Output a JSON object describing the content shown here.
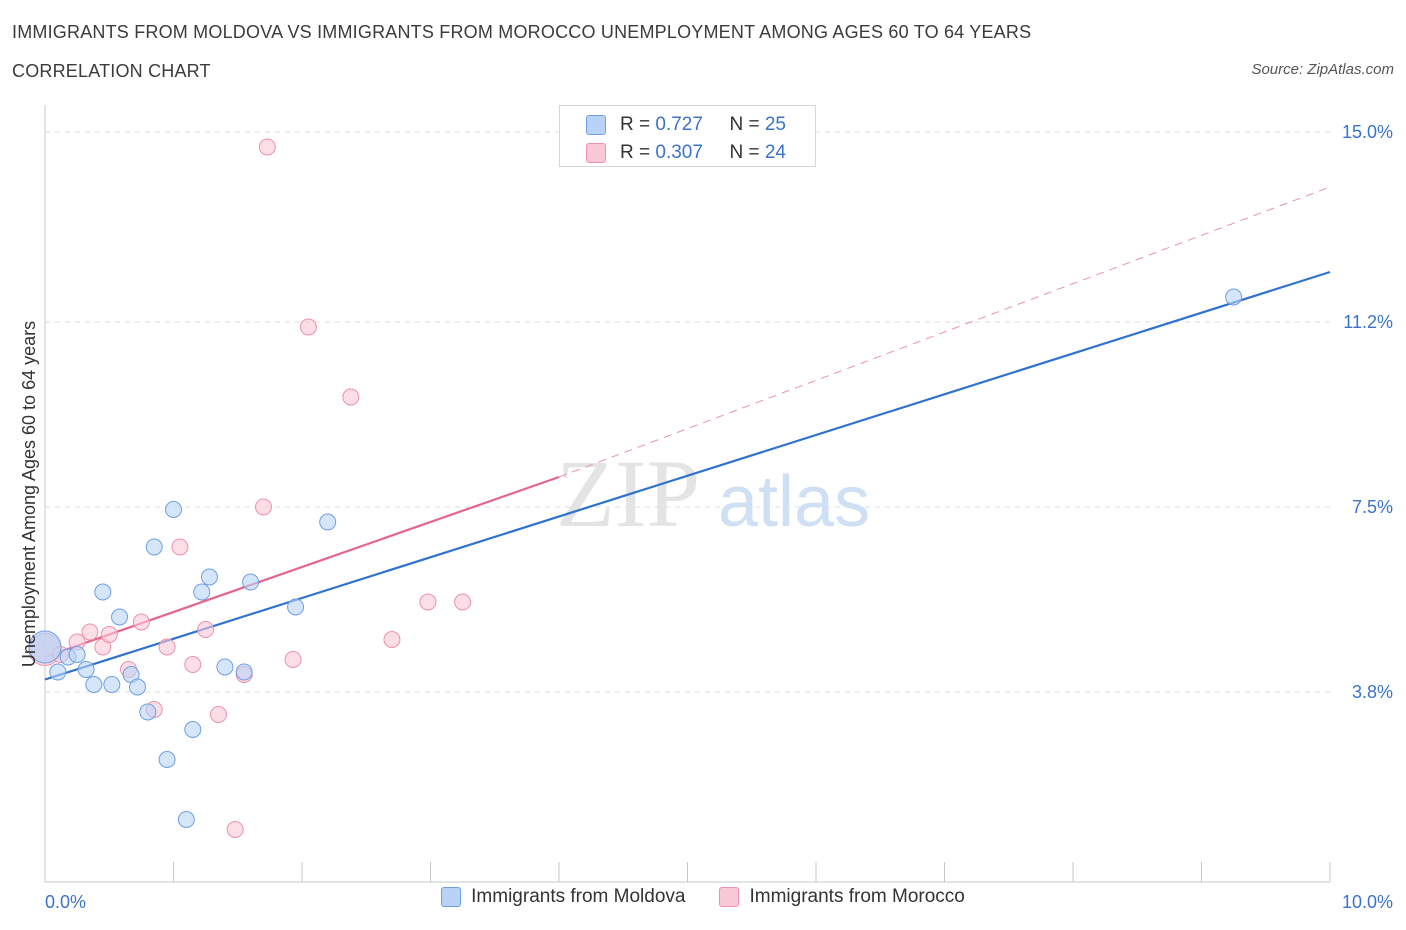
{
  "title": "IMMIGRANTS FROM MOLDOVA VS IMMIGRANTS FROM MOROCCO UNEMPLOYMENT AMONG AGES 60 TO 64 YEARS",
  "subtitle": "CORRELATION CHART",
  "source": "Source: ZipAtlas.com",
  "watermark": {
    "zip": "ZIP",
    "atlas": "atlas"
  },
  "colors": {
    "moldova_fill": "#b9d3f6",
    "moldova_stroke": "#6f9fe3",
    "moldova_line": "#2f72cf",
    "morocco_fill": "#f8c8d6",
    "morocco_stroke": "#ec91ae",
    "morocco_line": "#e5648e",
    "axis_label": "#3b73c9",
    "grid": "#dcdcdc"
  },
  "stats": {
    "moldova": {
      "r_label": "R = ",
      "r_value": "0.727",
      "n_label": "N = ",
      "n_value": "25"
    },
    "morocco": {
      "r_label": "R = ",
      "r_value": "0.307",
      "n_label": "N = ",
      "n_value": "24"
    }
  },
  "chart_data": {
    "type": "scatter",
    "title": "IMMIGRANTS FROM MOLDOVA VS IMMIGRANTS FROM MOROCCO UNEMPLOYMENT AMONG AGES 60 TO 64 YEARS",
    "xlabel": "",
    "ylabel": "Unemployment Among Ages 60 to 64 years",
    "xlim": [
      0,
      10
    ],
    "ylim": [
      0,
      15.3
    ],
    "x_tick_labels": [
      {
        "value": 0,
        "label": "0.0%"
      },
      {
        "value": 10,
        "label": "10.0%"
      }
    ],
    "y_tick_labels": [
      {
        "value": 3.8,
        "label": "3.8%"
      },
      {
        "value": 7.5,
        "label": "7.5%"
      },
      {
        "value": 11.2,
        "label": "11.2%"
      },
      {
        "value": 15.0,
        "label": "15.0%"
      }
    ],
    "series": [
      {
        "name": "Immigrants from Moldova",
        "points": [
          [
            0.0,
            4.7
          ],
          [
            0.1,
            4.2
          ],
          [
            0.18,
            4.5
          ],
          [
            0.25,
            4.55
          ],
          [
            0.32,
            4.25
          ],
          [
            0.38,
            3.95
          ],
          [
            0.45,
            5.8
          ],
          [
            0.52,
            3.95
          ],
          [
            0.58,
            5.3
          ],
          [
            0.67,
            4.15
          ],
          [
            0.72,
            3.9
          ],
          [
            0.8,
            3.4
          ],
          [
            0.85,
            6.7
          ],
          [
            0.95,
            2.45
          ],
          [
            1.0,
            7.45
          ],
          [
            1.1,
            1.25
          ],
          [
            1.15,
            3.05
          ],
          [
            1.22,
            5.8
          ],
          [
            1.28,
            6.1
          ],
          [
            1.4,
            4.3
          ],
          [
            1.55,
            4.2
          ],
          [
            1.6,
            6.0
          ],
          [
            1.95,
            5.5
          ],
          [
            2.2,
            7.2
          ],
          [
            9.25,
            11.7
          ]
        ],
        "trend": {
          "x": [
            0.0,
            10.0
          ],
          "y": [
            4.05,
            12.2
          ]
        }
      },
      {
        "name": "Immigrants from Morocco",
        "points": [
          [
            0.0,
            4.65
          ],
          [
            0.12,
            4.55
          ],
          [
            0.25,
            4.8
          ],
          [
            0.35,
            5.0
          ],
          [
            0.45,
            4.7
          ],
          [
            0.5,
            4.95
          ],
          [
            0.65,
            4.25
          ],
          [
            0.75,
            5.2
          ],
          [
            0.85,
            3.45
          ],
          [
            0.95,
            4.7
          ],
          [
            1.05,
            6.7
          ],
          [
            1.15,
            4.35
          ],
          [
            1.25,
            5.05
          ],
          [
            1.35,
            3.35
          ],
          [
            1.48,
            1.05
          ],
          [
            1.55,
            4.15
          ],
          [
            1.7,
            7.5
          ],
          [
            1.73,
            14.7
          ],
          [
            1.93,
            4.45
          ],
          [
            2.05,
            11.1
          ],
          [
            2.38,
            9.7
          ],
          [
            2.7,
            4.85
          ],
          [
            2.98,
            5.6
          ],
          [
            3.25,
            5.6
          ]
        ],
        "trend": {
          "x": [
            0.0,
            4.0
          ],
          "y": [
            4.5,
            8.1
          ]
        },
        "trend_extension": {
          "x": [
            4.0,
            10.0
          ],
          "y": [
            8.1,
            13.9
          ]
        }
      }
    ],
    "legend": [
      "Immigrants from Moldova",
      "Immigrants from Morocco"
    ]
  }
}
